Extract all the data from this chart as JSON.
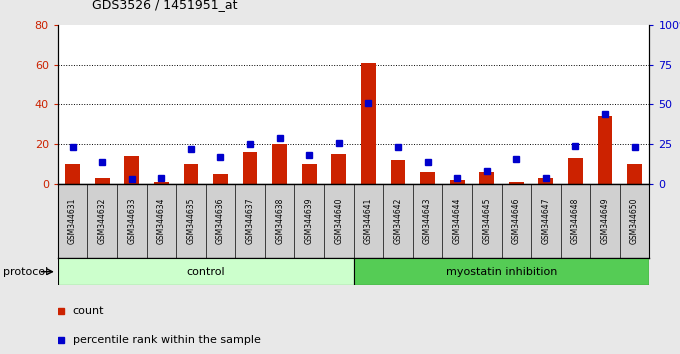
{
  "title": "GDS3526 / 1451951_at",
  "samples": [
    "GSM344631",
    "GSM344632",
    "GSM344633",
    "GSM344634",
    "GSM344635",
    "GSM344636",
    "GSM344637",
    "GSM344638",
    "GSM344639",
    "GSM344640",
    "GSM344641",
    "GSM344642",
    "GSM344643",
    "GSM344644",
    "GSM344645",
    "GSM344646",
    "GSM344647",
    "GSM344648",
    "GSM344649",
    "GSM344650"
  ],
  "counts": [
    10,
    3,
    14,
    1,
    10,
    5,
    16,
    20,
    10,
    15,
    61,
    12,
    6,
    2,
    6,
    1,
    3,
    13,
    34,
    10
  ],
  "percentiles": [
    23,
    14,
    3,
    4,
    22,
    17,
    25,
    29,
    18,
    26,
    51,
    23,
    14,
    4,
    8,
    16,
    4,
    24,
    44,
    23
  ],
  "ylim_left": [
    0,
    80
  ],
  "ylim_right": [
    0,
    100
  ],
  "yticks_left": [
    0,
    20,
    40,
    60,
    80
  ],
  "yticks_right": [
    0,
    25,
    50,
    75,
    100
  ],
  "ytick_labels_right": [
    "0",
    "25",
    "50",
    "75",
    "100%"
  ],
  "bar_color": "#cc2200",
  "marker_color": "#0000cc",
  "control_color": "#ccffcc",
  "myostatin_color": "#55cc55",
  "bar_width": 0.5,
  "marker_size": 5,
  "legend_count_label": "count",
  "legend_pct_label": "percentile rank within the sample",
  "control_label": "control",
  "myostatin_label": "myostatin inhibition",
  "protocol_label": "protocol",
  "fig_bg": "#e8e8e8"
}
